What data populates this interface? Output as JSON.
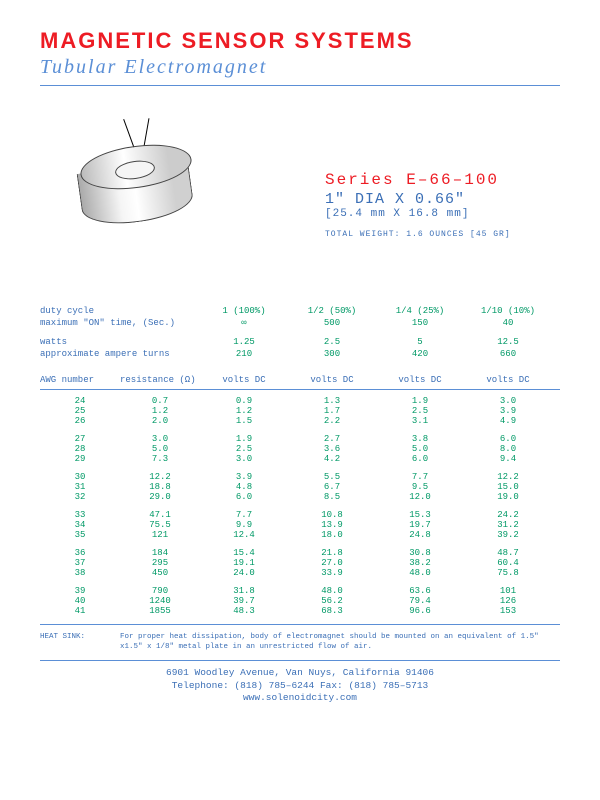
{
  "header": {
    "company": "Magnetic Sensor Systems",
    "product": "Tubular Electromagnet"
  },
  "series_block": {
    "series": "Series  E–66–100",
    "dims": "1\"  DIA  X  0.66\"",
    "dims_mm": "[25.4 mm X 16.8 mm]",
    "weight": "TOTAL WEIGHT:  1.6 OUNCES [45 GR]"
  },
  "spec_labels": {
    "duty_cycle": "duty cycle",
    "max_on": "maximum \"ON\" time, (Sec.)",
    "watts": "watts",
    "amp_turns": "approximate ampere turns"
  },
  "columns": [
    {
      "duty": "1 (100%)",
      "on": "∞",
      "watts": "1.25",
      "amp": "210",
      "hdr": "volts DC"
    },
    {
      "duty": "1/2 (50%)",
      "on": "500",
      "watts": "2.5",
      "amp": "300",
      "hdr": "volts DC"
    },
    {
      "duty": "1/4 (25%)",
      "on": "150",
      "watts": "5",
      "amp": "420",
      "hdr": "volts DC"
    },
    {
      "duty": "1/10 (10%)",
      "on": "40",
      "watts": "12.5",
      "amp": "660",
      "hdr": "volts DC"
    }
  ],
  "table_header": {
    "awg": "AWG number",
    "resistance": "resistance (Ω)"
  },
  "groups": [
    [
      {
        "awg": "24",
        "r": "0.7",
        "v": [
          "0.9",
          "1.3",
          "1.9",
          "3.0"
        ]
      },
      {
        "awg": "25",
        "r": "1.2",
        "v": [
          "1.2",
          "1.7",
          "2.5",
          "3.9"
        ]
      },
      {
        "awg": "26",
        "r": "2.0",
        "v": [
          "1.5",
          "2.2",
          "3.1",
          "4.9"
        ]
      }
    ],
    [
      {
        "awg": "27",
        "r": "3.0",
        "v": [
          "1.9",
          "2.7",
          "3.8",
          "6.0"
        ]
      },
      {
        "awg": "28",
        "r": "5.0",
        "v": [
          "2.5",
          "3.6",
          "5.0",
          "8.0"
        ]
      },
      {
        "awg": "29",
        "r": "7.3",
        "v": [
          "3.0",
          "4.2",
          "6.0",
          "9.4"
        ]
      }
    ],
    [
      {
        "awg": "30",
        "r": "12.2",
        "v": [
          "3.9",
          "5.5",
          "7.7",
          "12.2"
        ]
      },
      {
        "awg": "31",
        "r": "18.8",
        "v": [
          "4.8",
          "6.7",
          "9.5",
          "15.0"
        ]
      },
      {
        "awg": "32",
        "r": "29.0",
        "v": [
          "6.0",
          "8.5",
          "12.0",
          "19.0"
        ]
      }
    ],
    [
      {
        "awg": "33",
        "r": "47.1",
        "v": [
          "7.7",
          "10.8",
          "15.3",
          "24.2"
        ]
      },
      {
        "awg": "34",
        "r": "75.5",
        "v": [
          "9.9",
          "13.9",
          "19.7",
          "31.2"
        ]
      },
      {
        "awg": "35",
        "r": "121",
        "v": [
          "12.4",
          "18.0",
          "24.8",
          "39.2"
        ]
      }
    ],
    [
      {
        "awg": "36",
        "r": "184",
        "v": [
          "15.4",
          "21.8",
          "30.8",
          "48.7"
        ]
      },
      {
        "awg": "37",
        "r": "295",
        "v": [
          "19.1",
          "27.0",
          "38.2",
          "60.4"
        ]
      },
      {
        "awg": "38",
        "r": "450",
        "v": [
          "24.0",
          "33.9",
          "48.0",
          "75.8"
        ]
      }
    ],
    [
      {
        "awg": "39",
        "r": "790",
        "v": [
          "31.8",
          "48.0",
          "63.6",
          "101"
        ]
      },
      {
        "awg": "40",
        "r": "1240",
        "v": [
          "39.7",
          "56.2",
          "79.4",
          "126"
        ]
      },
      {
        "awg": "41",
        "r": "1855",
        "v": [
          "48.3",
          "68.3",
          "96.6",
          "153"
        ]
      }
    ]
  ],
  "heatsink": {
    "label": "HEAT SINK:",
    "text": "For proper heat dissipation, body of electromagnet should be mounted on an equivalent of 1.5\" x1.5\" x 1/8\" metal plate in an unrestricted flow of air."
  },
  "footer": {
    "addr": "6901 Woodley Avenue,  Van Nuys, California  91406",
    "phone": "Telephone: (818) 785–6244    Fax: (818) 785–5713",
    "web": "www.solenoidcity.com"
  },
  "style": {
    "red": "#ed1c24",
    "blue": "#3b6fb6",
    "lightblue": "#5b8fd6",
    "green": "#009966"
  }
}
